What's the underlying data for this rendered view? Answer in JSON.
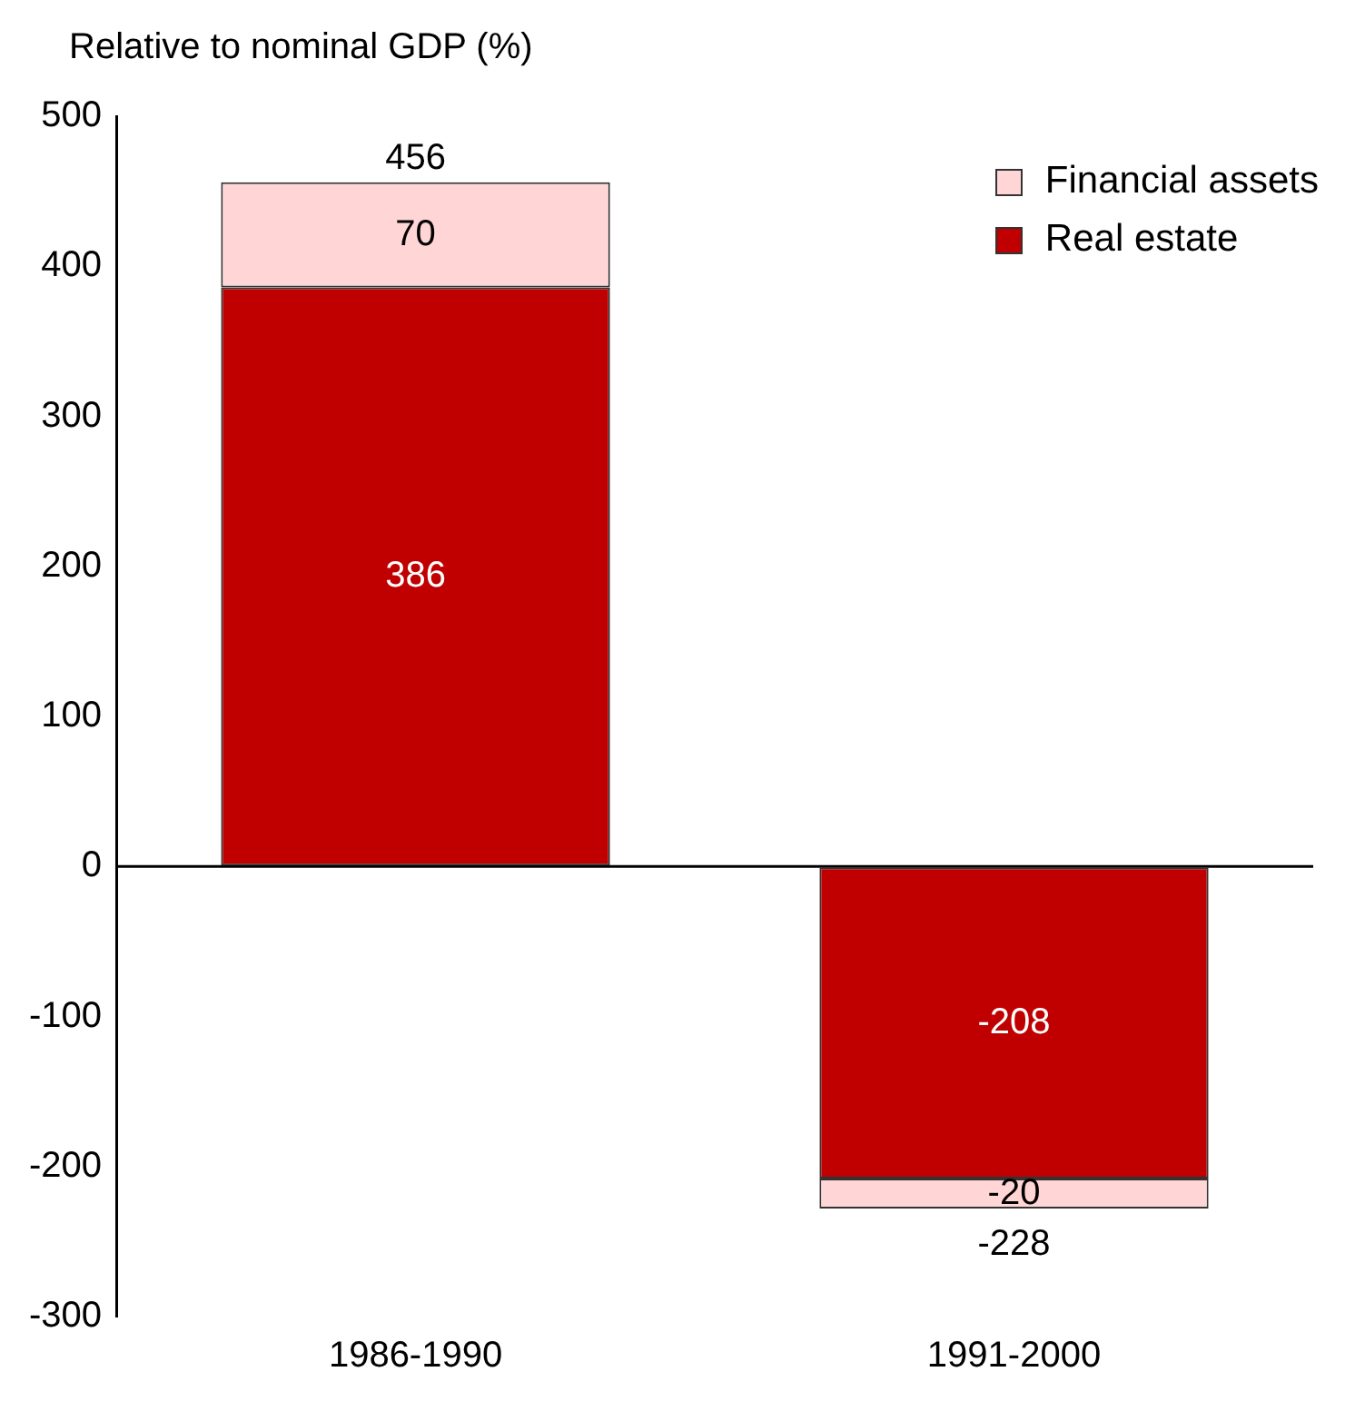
{
  "chart_data": {
    "type": "bar",
    "ylabel": "Relative to nominal GDP (%)",
    "categories": [
      "1986-1990",
      "1991-2000"
    ],
    "stacked": true,
    "series": [
      {
        "name": "Real estate",
        "color": "#c00000",
        "values": [
          386,
          -208
        ]
      },
      {
        "name": "Financial assets",
        "color": "#ffd5d5",
        "values": [
          70,
          -20
        ]
      }
    ],
    "totals": [
      "456",
      "-228"
    ],
    "data_labels": true,
    "ylim": [
      -300,
      500
    ],
    "yticks": [
      -300,
      -200,
      -100,
      0,
      100,
      200,
      300,
      400,
      500
    ],
    "grid": false,
    "legend": "top right",
    "ref_lines": [
      {
        "axis": "y",
        "value": 0,
        "color": "#000000"
      }
    ]
  }
}
